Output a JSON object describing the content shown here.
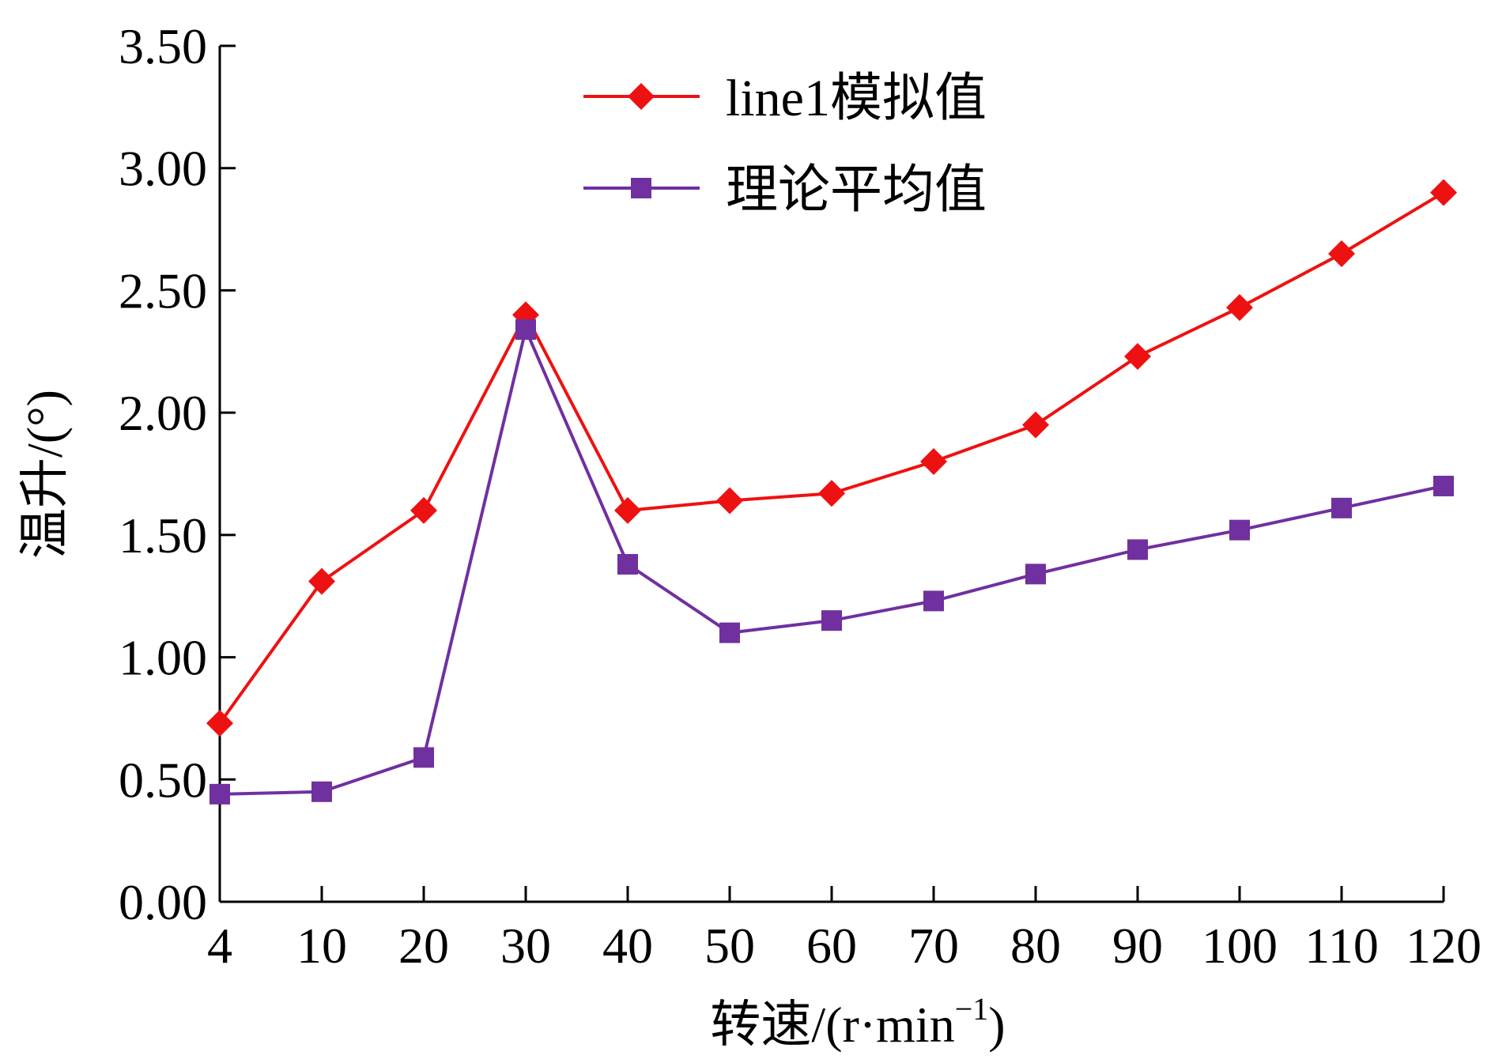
{
  "chart_data": {
    "type": "line",
    "categories": [
      "4",
      "10",
      "20",
      "30",
      "40",
      "50",
      "60",
      "70",
      "80",
      "90",
      "100",
      "110",
      "120"
    ],
    "series": [
      {
        "name": "line1模拟值",
        "color": "#ee1111",
        "marker": "diamond",
        "values": [
          0.73,
          1.31,
          1.6,
          2.4,
          1.6,
          1.64,
          1.67,
          1.8,
          1.95,
          2.23,
          2.43,
          2.65,
          2.9
        ]
      },
      {
        "name": "理论平均值",
        "color": "#7030a0",
        "marker": "square",
        "values": [
          0.44,
          0.45,
          0.59,
          2.34,
          1.38,
          1.1,
          1.15,
          1.23,
          1.34,
          1.44,
          1.52,
          1.61,
          1.7
        ]
      }
    ],
    "ylim": [
      0,
      3.5
    ],
    "yticks": [
      "0.00",
      "0.50",
      "1.00",
      "1.50",
      "2.00",
      "2.50",
      "3.00",
      "3.50"
    ],
    "xlabel_main": "转速/(r·min",
    "xlabel_sup": "−1",
    "xlabel_end": ")",
    "ylabel": "温升/(°)",
    "legend_position": "top-center",
    "grid": false
  }
}
